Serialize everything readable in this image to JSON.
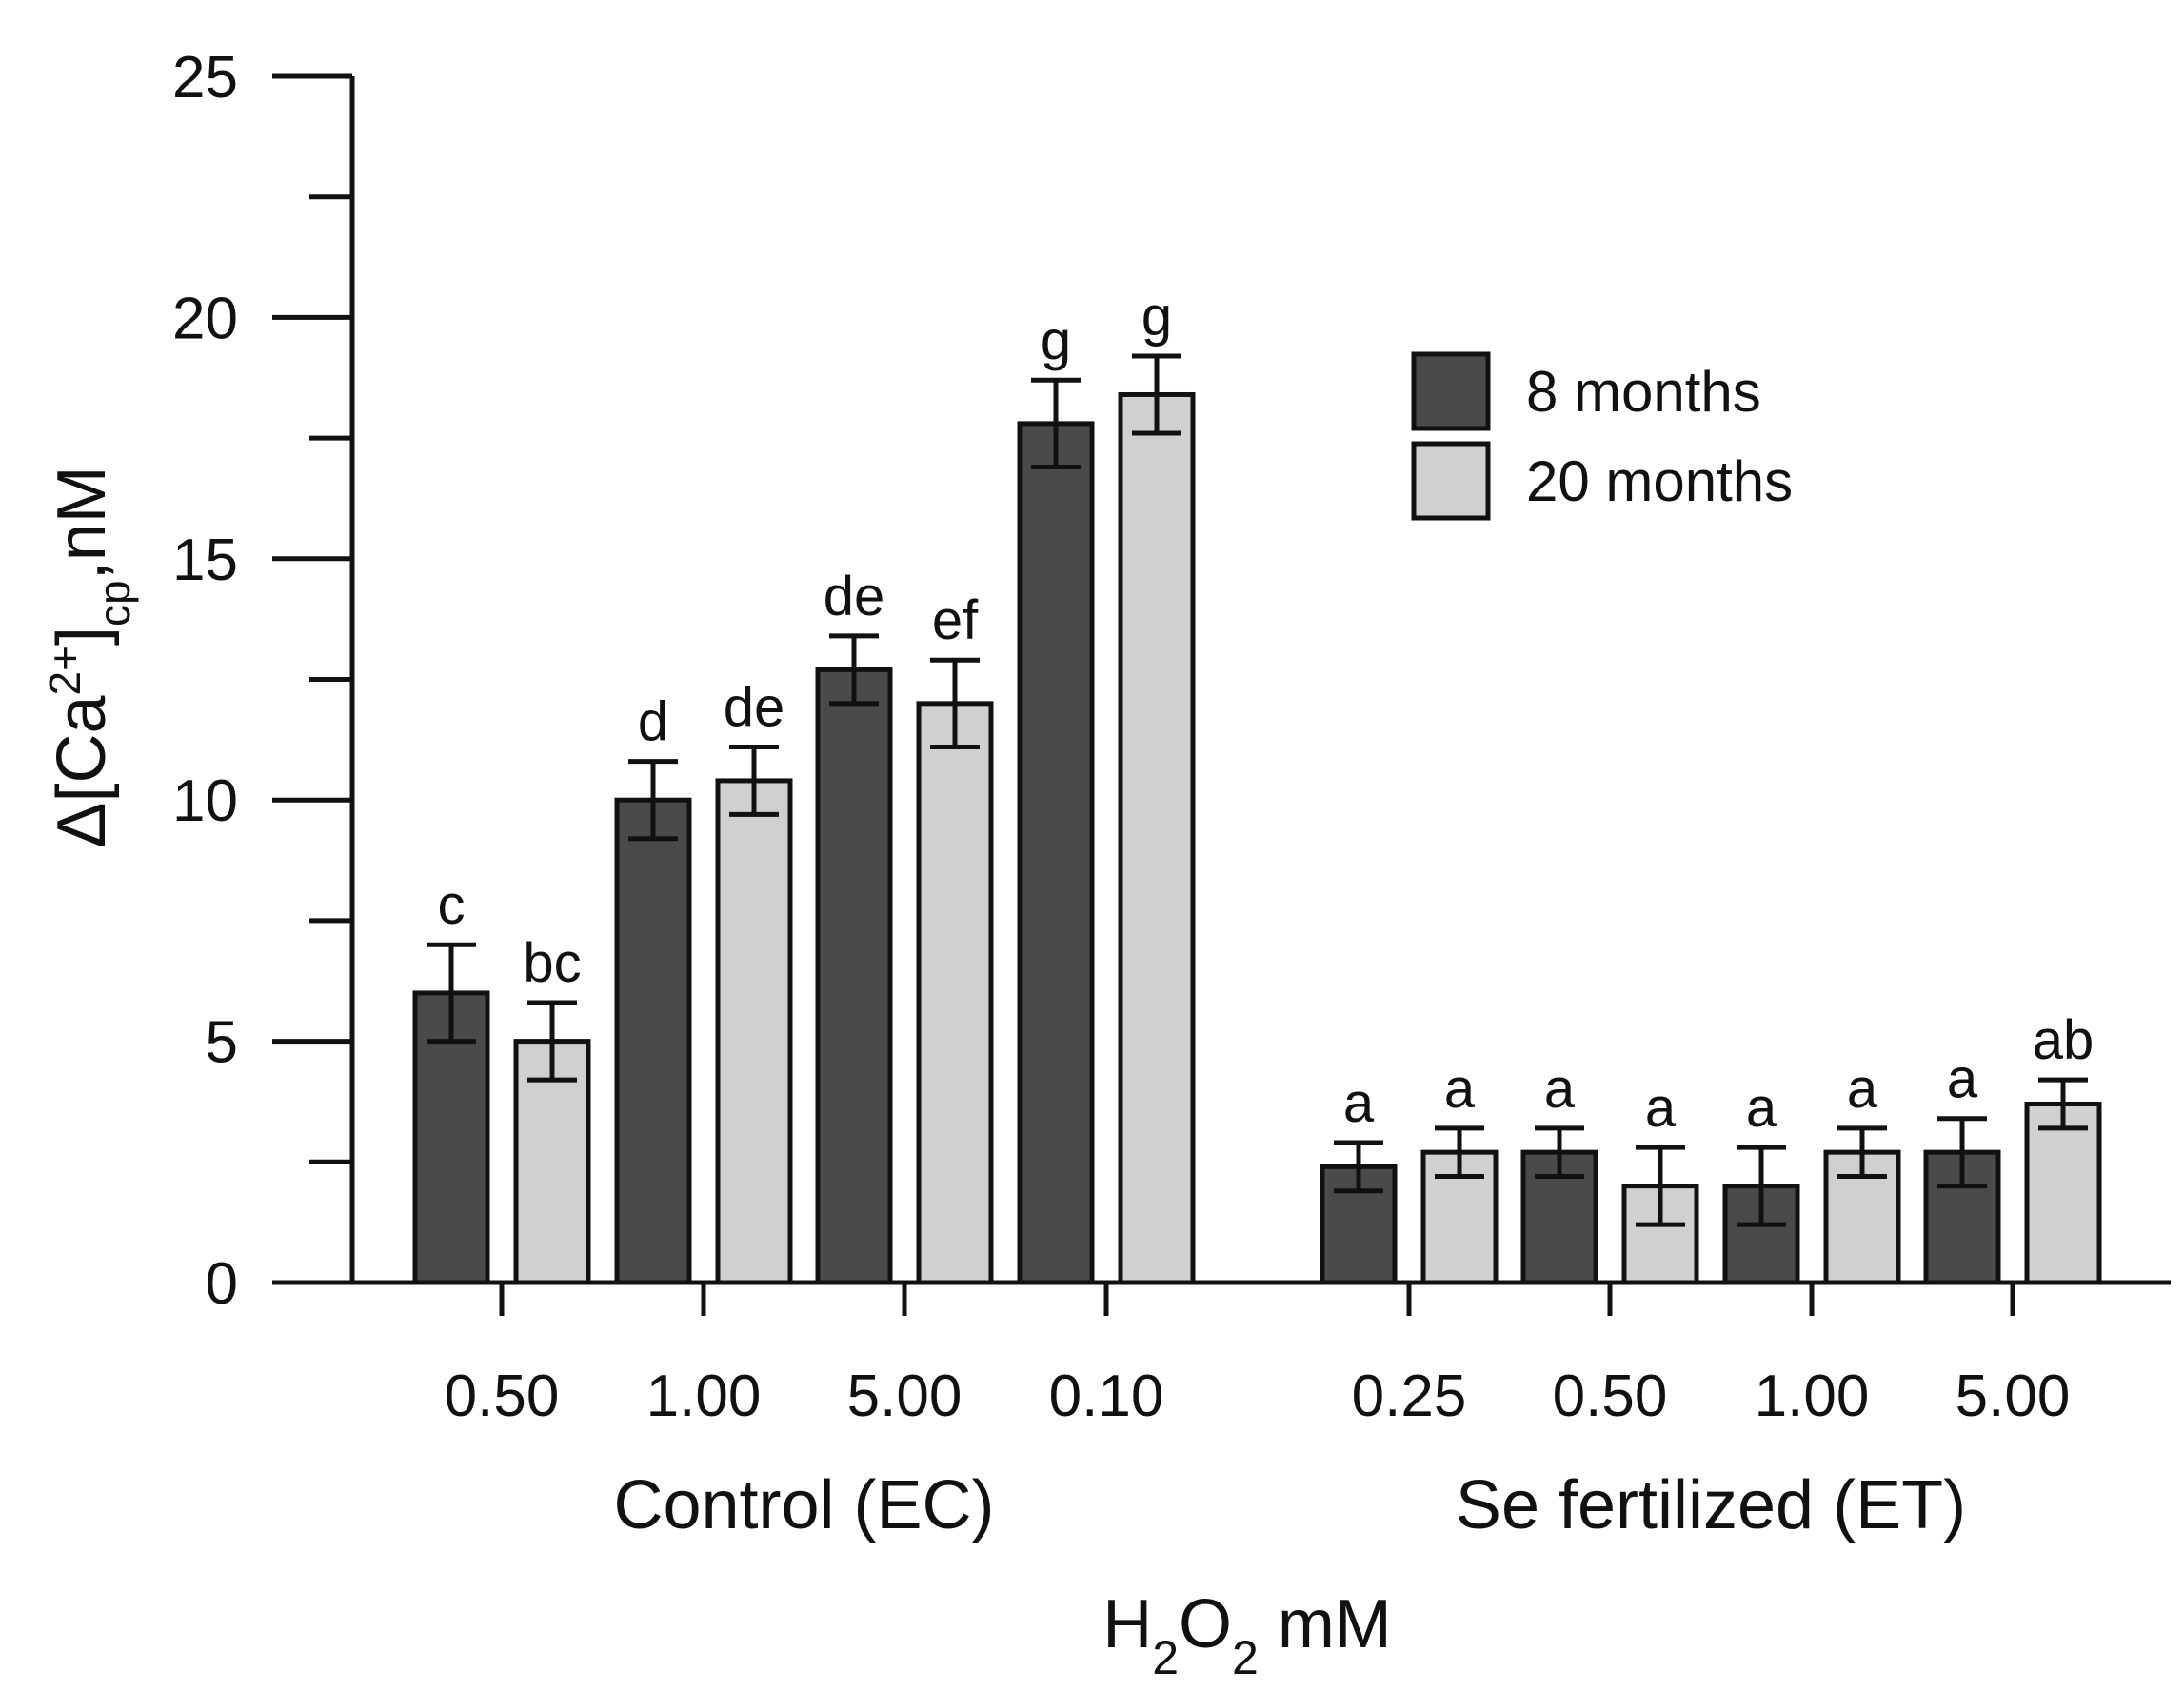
{
  "chart_data": {
    "type": "bar",
    "title": "",
    "xlabel": {
      "main": "H",
      "sub1": "2",
      "mid": "O",
      "sub2": "2",
      "unit": " mM"
    },
    "ylabel": {
      "pre": "Δ[Ca",
      "sup": "2+",
      "mid": "]",
      "sub": "cp",
      "post": ",nM"
    },
    "ylim": [
      0,
      25
    ],
    "yticks": [
      0,
      5,
      10,
      15,
      20,
      25
    ],
    "minor_step": 2.5,
    "legend_position": "top-right",
    "groups": [
      {
        "label": "Control (EC)",
        "categories": [
          "0.50",
          "1.00",
          "5.00",
          "0.10"
        ]
      },
      {
        "label": "Se fertilized (ET)",
        "categories": [
          "0.25",
          "0.50",
          "1.00",
          "5.00"
        ]
      }
    ],
    "series": [
      {
        "name": "8 months",
        "color": "#4a4a4a",
        "values": [
          6.0,
          10.0,
          12.7,
          17.8,
          2.4,
          2.7,
          2.0,
          2.7
        ],
        "errors": [
          1.0,
          0.8,
          0.7,
          0.9,
          0.5,
          0.5,
          0.8,
          0.7
        ],
        "letters": [
          "c",
          "d",
          "de",
          "g",
          "a",
          "a",
          "a",
          "a"
        ]
      },
      {
        "name": "20 months",
        "color": "#d0d0d0",
        "values": [
          5.0,
          10.4,
          12.0,
          18.4,
          2.7,
          2.0,
          2.7,
          3.7
        ],
        "errors": [
          0.8,
          0.7,
          0.9,
          0.8,
          0.5,
          0.8,
          0.5,
          0.5
        ],
        "letters": [
          "bc",
          "de",
          "ef",
          "g",
          "a",
          "a",
          "a",
          "ab"
        ]
      }
    ]
  }
}
